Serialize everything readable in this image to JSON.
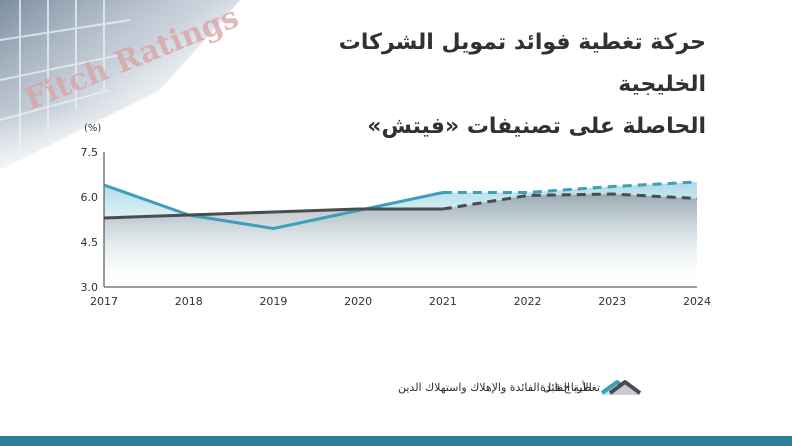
{
  "header": {
    "title_line1": "حركة تغطية فوائد تمويل الشركات الخليجية",
    "title_line2": "الحاصلة على تصنيفات «فيتش»",
    "photo_text": "Fitch Ratings"
  },
  "chart_data": {
    "type": "line",
    "ylabel": "(%)",
    "x": [
      "2017",
      "2018",
      "2019",
      "2020",
      "2021",
      "2022",
      "2023",
      "2024"
    ],
    "ylim": [
      3.0,
      7.5
    ],
    "yticks": [
      "7.5",
      "6.0",
      "4.5",
      "3.0"
    ],
    "ytick_values": [
      7.5,
      6.0,
      4.5,
      3.0
    ],
    "forecast_from_index": 4,
    "grid": false,
    "legend_position": "bottom",
    "series": [
      {
        "name": "الأرباح قبل الفائدة والإهلاك واستهلاك الدين",
        "values": [
          6.4,
          5.4,
          4.95,
          5.55,
          6.15,
          6.15,
          6.35,
          6.5
        ],
        "color": "#3d9fba",
        "fill": "#bfe3ee"
      },
      {
        "name": "تغطية الفائدة",
        "values": [
          5.3,
          5.4,
          5.5,
          5.6,
          5.6,
          6.05,
          6.1,
          5.95
        ],
        "color": "#4a4d50",
        "fill": "#c9cdd1"
      }
    ]
  },
  "colors": {
    "accent": "#3d9fba",
    "dark": "#4a4d50",
    "bottom_bar": "#2e7e97"
  }
}
